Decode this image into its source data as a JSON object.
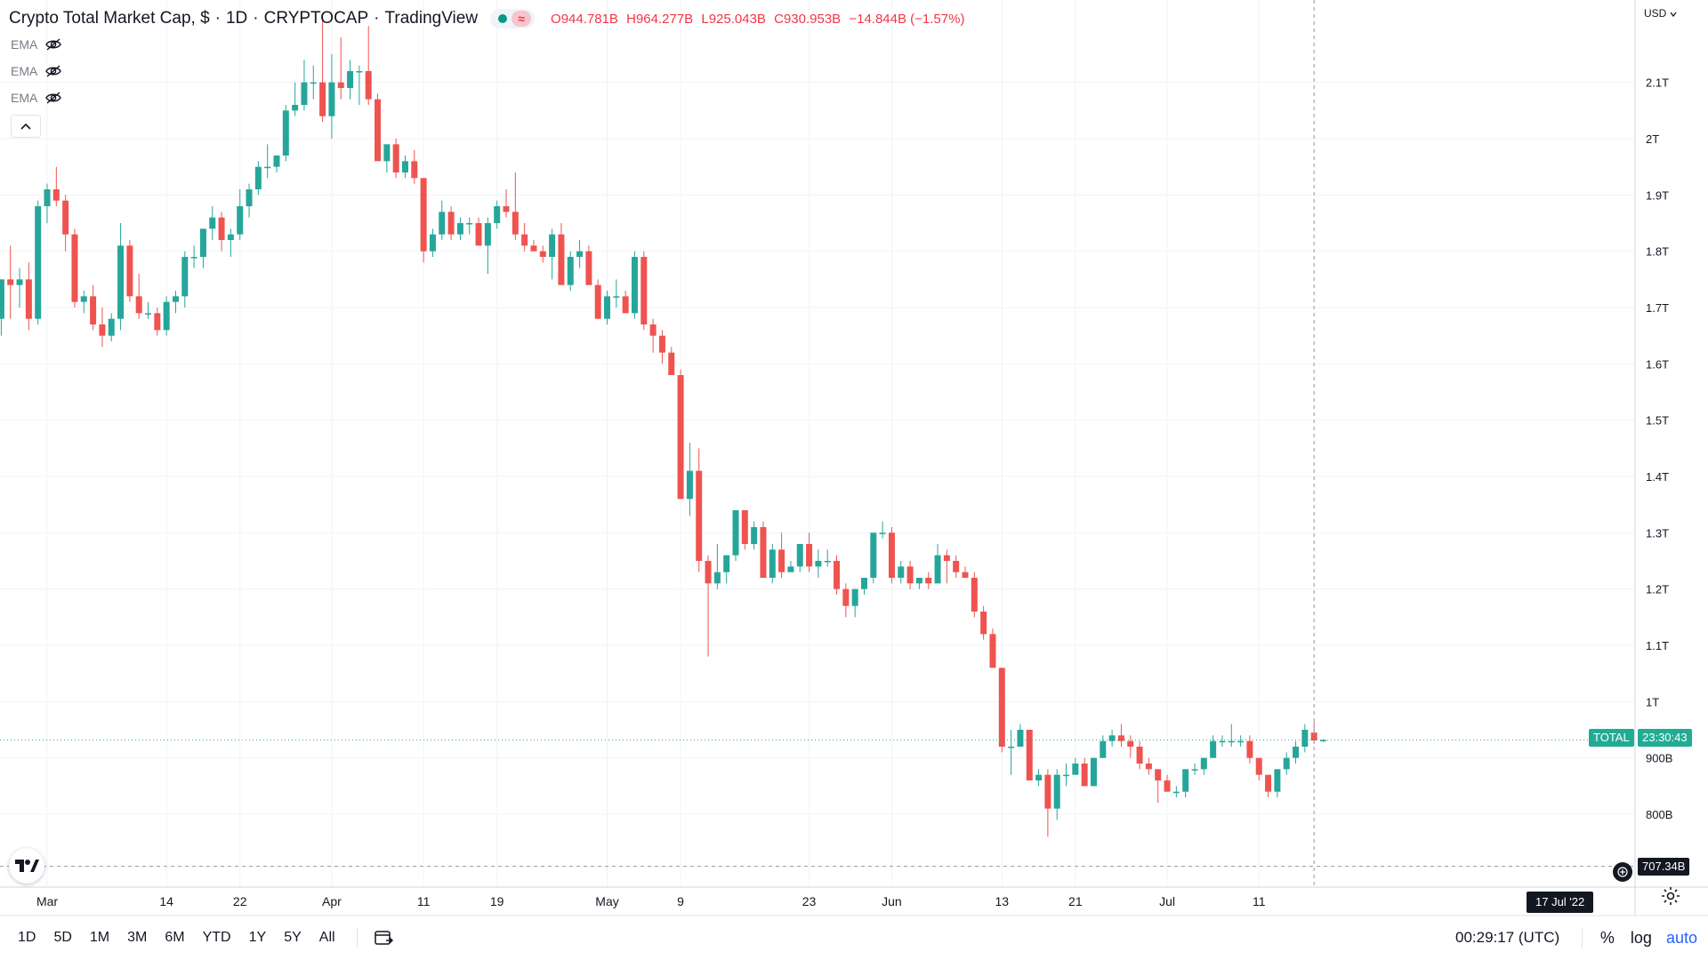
{
  "header": {
    "title": "Crypto Total Market Cap, $",
    "interval": "1D",
    "symbol": "CRYPTOCAP",
    "source": "TradingView",
    "ohlc": {
      "open": "O944.781B",
      "high": "H964.277B",
      "low": "L925.043B",
      "close": "C930.953B",
      "change": "−14.844B (−1.57%)"
    }
  },
  "indicators": [
    {
      "label": "EMA",
      "icon": "eye-crossed-icon"
    },
    {
      "label": "EMA",
      "icon": "eye-crossed-icon"
    },
    {
      "label": "EMA",
      "icon": "eye-crossed-icon"
    }
  ],
  "price_axis": {
    "currency": "USD",
    "labels": [
      "2.1T",
      "2T",
      "1.9T",
      "1.8T",
      "1.7T",
      "1.6T",
      "1.5T",
      "1.4T",
      "1.3T",
      "1.2T",
      "1.1T",
      "1T",
      "900B",
      "800B"
    ]
  },
  "tags": {
    "symbol_label": "TOTAL",
    "countdown": "23:30:43",
    "crosshair_price": "707.34B",
    "crosshair_date": "17 Jul '22"
  },
  "x_axis_labels": [
    "Mar",
    "14",
    "22",
    "Apr",
    "11",
    "19",
    "May",
    "9",
    "23",
    "Jun",
    "13",
    "21",
    "Jul",
    "11"
  ],
  "bottom_bar": {
    "ranges": [
      "1D",
      "5D",
      "1M",
      "3M",
      "6M",
      "YTD",
      "1Y",
      "5Y",
      "All"
    ],
    "clock": "00:29:17 (UTC)",
    "percent": "%",
    "log": "log",
    "auto": "auto"
  },
  "colors": {
    "up": "#26a69a",
    "down": "#ef5350",
    "tag_green": "#22ab94",
    "ohlc_text": "#f23645",
    "grid": "#f0f3fa"
  },
  "chart_data": {
    "type": "candlestick",
    "title": "Crypto Total Market Cap, $",
    "xlabel": "",
    "ylabel": "",
    "ylim": [
      0.708,
      2.27
    ],
    "x_range": [
      "2022-02-24",
      "2022-07-17"
    ],
    "units": "trillion USD",
    "grid": true,
    "candles": [
      {
        "date": "2022-02-24",
        "o": 1.68,
        "h": 1.75,
        "l": 1.65,
        "c": 1.75
      },
      {
        "date": "2022-02-25",
        "o": 1.75,
        "h": 1.81,
        "l": 1.68,
        "c": 1.74
      },
      {
        "date": "2022-02-26",
        "o": 1.74,
        "h": 1.77,
        "l": 1.7,
        "c": 1.75
      },
      {
        "date": "2022-02-27",
        "o": 1.75,
        "h": 1.78,
        "l": 1.66,
        "c": 1.68
      },
      {
        "date": "2022-02-28",
        "o": 1.68,
        "h": 1.89,
        "l": 1.67,
        "c": 1.88
      },
      {
        "date": "2022-03-01",
        "o": 1.88,
        "h": 1.92,
        "l": 1.85,
        "c": 1.91
      },
      {
        "date": "2022-03-02",
        "o": 1.91,
        "h": 1.95,
        "l": 1.88,
        "c": 1.89
      },
      {
        "date": "2022-03-03",
        "o": 1.89,
        "h": 1.9,
        "l": 1.8,
        "c": 1.83
      },
      {
        "date": "2022-03-04",
        "o": 1.83,
        "h": 1.84,
        "l": 1.7,
        "c": 1.71
      },
      {
        "date": "2022-03-05",
        "o": 1.71,
        "h": 1.73,
        "l": 1.69,
        "c": 1.72
      },
      {
        "date": "2022-03-06",
        "o": 1.72,
        "h": 1.74,
        "l": 1.66,
        "c": 1.67
      },
      {
        "date": "2022-03-07",
        "o": 1.67,
        "h": 1.7,
        "l": 1.63,
        "c": 1.65
      },
      {
        "date": "2022-03-08",
        "o": 1.65,
        "h": 1.69,
        "l": 1.64,
        "c": 1.68
      },
      {
        "date": "2022-03-09",
        "o": 1.68,
        "h": 1.85,
        "l": 1.66,
        "c": 1.81
      },
      {
        "date": "2022-03-10",
        "o": 1.81,
        "h": 1.82,
        "l": 1.71,
        "c": 1.72
      },
      {
        "date": "2022-03-11",
        "o": 1.72,
        "h": 1.76,
        "l": 1.68,
        "c": 1.69
      },
      {
        "date": "2022-03-12",
        "o": 1.69,
        "h": 1.71,
        "l": 1.68,
        "c": 1.69
      },
      {
        "date": "2022-03-13",
        "o": 1.69,
        "h": 1.7,
        "l": 1.65,
        "c": 1.66
      },
      {
        "date": "2022-03-14",
        "o": 1.66,
        "h": 1.72,
        "l": 1.65,
        "c": 1.71
      },
      {
        "date": "2022-03-15",
        "o": 1.71,
        "h": 1.73,
        "l": 1.69,
        "c": 1.72
      },
      {
        "date": "2022-03-16",
        "o": 1.72,
        "h": 1.8,
        "l": 1.7,
        "c": 1.79
      },
      {
        "date": "2022-03-17",
        "o": 1.79,
        "h": 1.81,
        "l": 1.77,
        "c": 1.79
      },
      {
        "date": "2022-03-18",
        "o": 1.79,
        "h": 1.84,
        "l": 1.77,
        "c": 1.84
      },
      {
        "date": "2022-03-19",
        "o": 1.84,
        "h": 1.88,
        "l": 1.82,
        "c": 1.86
      },
      {
        "date": "2022-03-20",
        "o": 1.86,
        "h": 1.87,
        "l": 1.8,
        "c": 1.82
      },
      {
        "date": "2022-03-21",
        "o": 1.82,
        "h": 1.84,
        "l": 1.79,
        "c": 1.83
      },
      {
        "date": "2022-03-22",
        "o": 1.83,
        "h": 1.91,
        "l": 1.82,
        "c": 1.88
      },
      {
        "date": "2022-03-23",
        "o": 1.88,
        "h": 1.92,
        "l": 1.86,
        "c": 1.91
      },
      {
        "date": "2022-03-24",
        "o": 1.91,
        "h": 1.96,
        "l": 1.9,
        "c": 1.95
      },
      {
        "date": "2022-03-25",
        "o": 1.95,
        "h": 1.99,
        "l": 1.93,
        "c": 1.95
      },
      {
        "date": "2022-03-26",
        "o": 1.95,
        "h": 1.97,
        "l": 1.94,
        "c": 1.97
      },
      {
        "date": "2022-03-27",
        "o": 1.97,
        "h": 2.06,
        "l": 1.96,
        "c": 2.05
      },
      {
        "date": "2022-03-28",
        "o": 2.05,
        "h": 2.1,
        "l": 2.04,
        "c": 2.06
      },
      {
        "date": "2022-03-29",
        "o": 2.06,
        "h": 2.14,
        "l": 2.05,
        "c": 2.1
      },
      {
        "date": "2022-03-30",
        "o": 2.1,
        "h": 2.13,
        "l": 2.07,
        "c": 2.1
      },
      {
        "date": "2022-03-31",
        "o": 2.1,
        "h": 2.22,
        "l": 2.03,
        "c": 2.04
      },
      {
        "date": "2022-04-01",
        "o": 2.04,
        "h": 2.15,
        "l": 2.0,
        "c": 2.1
      },
      {
        "date": "2022-04-02",
        "o": 2.1,
        "h": 2.18,
        "l": 2.07,
        "c": 2.09
      },
      {
        "date": "2022-04-03",
        "o": 2.09,
        "h": 2.14,
        "l": 2.07,
        "c": 2.12
      },
      {
        "date": "2022-04-04",
        "o": 2.12,
        "h": 2.13,
        "l": 2.06,
        "c": 2.12
      },
      {
        "date": "2022-04-05",
        "o": 2.12,
        "h": 2.2,
        "l": 2.06,
        "c": 2.07
      },
      {
        "date": "2022-04-06",
        "o": 2.07,
        "h": 2.08,
        "l": 1.96,
        "c": 1.96
      },
      {
        "date": "2022-04-07",
        "o": 1.96,
        "h": 1.99,
        "l": 1.94,
        "c": 1.99
      },
      {
        "date": "2022-04-08",
        "o": 1.99,
        "h": 2.0,
        "l": 1.93,
        "c": 1.94
      },
      {
        "date": "2022-04-09",
        "o": 1.94,
        "h": 1.97,
        "l": 1.93,
        "c": 1.96
      },
      {
        "date": "2022-04-10",
        "o": 1.96,
        "h": 1.98,
        "l": 1.92,
        "c": 1.93
      },
      {
        "date": "2022-04-11",
        "o": 1.93,
        "h": 1.93,
        "l": 1.78,
        "c": 1.8
      },
      {
        "date": "2022-04-12",
        "o": 1.8,
        "h": 1.84,
        "l": 1.79,
        "c": 1.83
      },
      {
        "date": "2022-04-13",
        "o": 1.83,
        "h": 1.89,
        "l": 1.82,
        "c": 1.87
      },
      {
        "date": "2022-04-14",
        "o": 1.87,
        "h": 1.88,
        "l": 1.82,
        "c": 1.83
      },
      {
        "date": "2022-04-15",
        "o": 1.83,
        "h": 1.86,
        "l": 1.82,
        "c": 1.85
      },
      {
        "date": "2022-04-16",
        "o": 1.85,
        "h": 1.86,
        "l": 1.83,
        "c": 1.85
      },
      {
        "date": "2022-04-17",
        "o": 1.85,
        "h": 1.86,
        "l": 1.81,
        "c": 1.81
      },
      {
        "date": "2022-04-18",
        "o": 1.81,
        "h": 1.86,
        "l": 1.76,
        "c": 1.85
      },
      {
        "date": "2022-04-19",
        "o": 1.85,
        "h": 1.89,
        "l": 1.84,
        "c": 1.88
      },
      {
        "date": "2022-04-20",
        "o": 1.88,
        "h": 1.91,
        "l": 1.86,
        "c": 1.87
      },
      {
        "date": "2022-04-21",
        "o": 1.87,
        "h": 1.94,
        "l": 1.82,
        "c": 1.83
      },
      {
        "date": "2022-04-22",
        "o": 1.83,
        "h": 1.85,
        "l": 1.8,
        "c": 1.81
      },
      {
        "date": "2022-04-23",
        "o": 1.81,
        "h": 1.82,
        "l": 1.8,
        "c": 1.8
      },
      {
        "date": "2022-04-24",
        "o": 1.8,
        "h": 1.81,
        "l": 1.78,
        "c": 1.79
      },
      {
        "date": "2022-04-25",
        "o": 1.79,
        "h": 1.84,
        "l": 1.75,
        "c": 1.83
      },
      {
        "date": "2022-04-26",
        "o": 1.83,
        "h": 1.85,
        "l": 1.74,
        "c": 1.74
      },
      {
        "date": "2022-04-27",
        "o": 1.74,
        "h": 1.8,
        "l": 1.73,
        "c": 1.79
      },
      {
        "date": "2022-04-28",
        "o": 1.79,
        "h": 1.82,
        "l": 1.77,
        "c": 1.8
      },
      {
        "date": "2022-04-29",
        "o": 1.8,
        "h": 1.81,
        "l": 1.74,
        "c": 1.74
      },
      {
        "date": "2022-04-30",
        "o": 1.74,
        "h": 1.75,
        "l": 1.68,
        "c": 1.68
      },
      {
        "date": "2022-05-01",
        "o": 1.68,
        "h": 1.73,
        "l": 1.67,
        "c": 1.72
      },
      {
        "date": "2022-05-02",
        "o": 1.72,
        "h": 1.75,
        "l": 1.7,
        "c": 1.72
      },
      {
        "date": "2022-05-03",
        "o": 1.72,
        "h": 1.73,
        "l": 1.69,
        "c": 1.69
      },
      {
        "date": "2022-05-04",
        "o": 1.69,
        "h": 1.8,
        "l": 1.68,
        "c": 1.79
      },
      {
        "date": "2022-05-05",
        "o": 1.79,
        "h": 1.8,
        "l": 1.66,
        "c": 1.67
      },
      {
        "date": "2022-05-06",
        "o": 1.67,
        "h": 1.68,
        "l": 1.62,
        "c": 1.65
      },
      {
        "date": "2022-05-07",
        "o": 1.65,
        "h": 1.66,
        "l": 1.6,
        "c": 1.62
      },
      {
        "date": "2022-05-08",
        "o": 1.62,
        "h": 1.63,
        "l": 1.58,
        "c": 1.58
      },
      {
        "date": "2022-05-09",
        "o": 1.58,
        "h": 1.59,
        "l": 1.36,
        "c": 1.36
      },
      {
        "date": "2022-05-10",
        "o": 1.36,
        "h": 1.46,
        "l": 1.33,
        "c": 1.41
      },
      {
        "date": "2022-05-11",
        "o": 1.41,
        "h": 1.45,
        "l": 1.23,
        "c": 1.25
      },
      {
        "date": "2022-05-12",
        "o": 1.25,
        "h": 1.26,
        "l": 1.08,
        "c": 1.21
      },
      {
        "date": "2022-05-13",
        "o": 1.21,
        "h": 1.28,
        "l": 1.2,
        "c": 1.23
      },
      {
        "date": "2022-05-14",
        "o": 1.23,
        "h": 1.26,
        "l": 1.21,
        "c": 1.26
      },
      {
        "date": "2022-05-15",
        "o": 1.26,
        "h": 1.34,
        "l": 1.25,
        "c": 1.34
      },
      {
        "date": "2022-05-16",
        "o": 1.34,
        "h": 1.34,
        "l": 1.27,
        "c": 1.28
      },
      {
        "date": "2022-05-17",
        "o": 1.28,
        "h": 1.32,
        "l": 1.27,
        "c": 1.31
      },
      {
        "date": "2022-05-18",
        "o": 1.31,
        "h": 1.32,
        "l": 1.22,
        "c": 1.22
      },
      {
        "date": "2022-05-19",
        "o": 1.22,
        "h": 1.28,
        "l": 1.21,
        "c": 1.27
      },
      {
        "date": "2022-05-20",
        "o": 1.27,
        "h": 1.3,
        "l": 1.22,
        "c": 1.23
      },
      {
        "date": "2022-05-21",
        "o": 1.23,
        "h": 1.25,
        "l": 1.23,
        "c": 1.24
      },
      {
        "date": "2022-05-22",
        "o": 1.24,
        "h": 1.28,
        "l": 1.23,
        "c": 1.28
      },
      {
        "date": "2022-05-23",
        "o": 1.28,
        "h": 1.3,
        "l": 1.23,
        "c": 1.24
      },
      {
        "date": "2022-05-24",
        "o": 1.24,
        "h": 1.27,
        "l": 1.22,
        "c": 1.25
      },
      {
        "date": "2022-05-25",
        "o": 1.25,
        "h": 1.27,
        "l": 1.24,
        "c": 1.25
      },
      {
        "date": "2022-05-26",
        "o": 1.25,
        "h": 1.26,
        "l": 1.19,
        "c": 1.2
      },
      {
        "date": "2022-05-27",
        "o": 1.2,
        "h": 1.21,
        "l": 1.15,
        "c": 1.17
      },
      {
        "date": "2022-05-28",
        "o": 1.17,
        "h": 1.2,
        "l": 1.15,
        "c": 1.2
      },
      {
        "date": "2022-05-29",
        "o": 1.2,
        "h": 1.22,
        "l": 1.19,
        "c": 1.22
      },
      {
        "date": "2022-05-30",
        "o": 1.22,
        "h": 1.3,
        "l": 1.21,
        "c": 1.3
      },
      {
        "date": "2022-05-31",
        "o": 1.3,
        "h": 1.32,
        "l": 1.29,
        "c": 1.3
      },
      {
        "date": "2022-06-01",
        "o": 1.3,
        "h": 1.31,
        "l": 1.21,
        "c": 1.22
      },
      {
        "date": "2022-06-02",
        "o": 1.22,
        "h": 1.25,
        "l": 1.21,
        "c": 1.24
      },
      {
        "date": "2022-06-03",
        "o": 1.24,
        "h": 1.25,
        "l": 1.2,
        "c": 1.21
      },
      {
        "date": "2022-06-04",
        "o": 1.21,
        "h": 1.22,
        "l": 1.2,
        "c": 1.22
      },
      {
        "date": "2022-06-05",
        "o": 1.22,
        "h": 1.23,
        "l": 1.2,
        "c": 1.21
      },
      {
        "date": "2022-06-06",
        "o": 1.21,
        "h": 1.28,
        "l": 1.21,
        "c": 1.26
      },
      {
        "date": "2022-06-07",
        "o": 1.26,
        "h": 1.27,
        "l": 1.21,
        "c": 1.25
      },
      {
        "date": "2022-06-08",
        "o": 1.25,
        "h": 1.26,
        "l": 1.22,
        "c": 1.23
      },
      {
        "date": "2022-06-09",
        "o": 1.23,
        "h": 1.24,
        "l": 1.22,
        "c": 1.22
      },
      {
        "date": "2022-06-10",
        "o": 1.22,
        "h": 1.23,
        "l": 1.15,
        "c": 1.16
      },
      {
        "date": "2022-06-11",
        "o": 1.16,
        "h": 1.17,
        "l": 1.11,
        "c": 1.12
      },
      {
        "date": "2022-06-12",
        "o": 1.12,
        "h": 1.13,
        "l": 1.06,
        "c": 1.06
      },
      {
        "date": "2022-06-13",
        "o": 1.06,
        "h": 1.06,
        "l": 0.91,
        "c": 0.92
      },
      {
        "date": "2022-06-14",
        "o": 0.92,
        "h": 0.95,
        "l": 0.87,
        "c": 0.92
      },
      {
        "date": "2022-06-15",
        "o": 0.92,
        "h": 0.96,
        "l": 0.92,
        "c": 0.95
      },
      {
        "date": "2022-06-16",
        "o": 0.95,
        "h": 0.95,
        "l": 0.86,
        "c": 0.86
      },
      {
        "date": "2022-06-17",
        "o": 0.86,
        "h": 0.88,
        "l": 0.85,
        "c": 0.87
      },
      {
        "date": "2022-06-18",
        "o": 0.87,
        "h": 0.88,
        "l": 0.76,
        "c": 0.81
      },
      {
        "date": "2022-06-19",
        "o": 0.81,
        "h": 0.88,
        "l": 0.79,
        "c": 0.87
      },
      {
        "date": "2022-06-20",
        "o": 0.87,
        "h": 0.89,
        "l": 0.85,
        "c": 0.87
      },
      {
        "date": "2022-06-21",
        "o": 0.87,
        "h": 0.9,
        "l": 0.87,
        "c": 0.89
      },
      {
        "date": "2022-06-22",
        "o": 0.89,
        "h": 0.9,
        "l": 0.85,
        "c": 0.85
      },
      {
        "date": "2022-06-23",
        "o": 0.85,
        "h": 0.9,
        "l": 0.85,
        "c": 0.9
      },
      {
        "date": "2022-06-24",
        "o": 0.9,
        "h": 0.94,
        "l": 0.9,
        "c": 0.93
      },
      {
        "date": "2022-06-25",
        "o": 0.93,
        "h": 0.95,
        "l": 0.92,
        "c": 0.94
      },
      {
        "date": "2022-06-26",
        "o": 0.94,
        "h": 0.96,
        "l": 0.92,
        "c": 0.93
      },
      {
        "date": "2022-06-27",
        "o": 0.93,
        "h": 0.94,
        "l": 0.9,
        "c": 0.92
      },
      {
        "date": "2022-06-28",
        "o": 0.92,
        "h": 0.93,
        "l": 0.88,
        "c": 0.89
      },
      {
        "date": "2022-06-29",
        "o": 0.89,
        "h": 0.9,
        "l": 0.87,
        "c": 0.88
      },
      {
        "date": "2022-06-30",
        "o": 0.88,
        "h": 0.88,
        "l": 0.82,
        "c": 0.86
      },
      {
        "date": "2022-07-01",
        "o": 0.86,
        "h": 0.87,
        "l": 0.84,
        "c": 0.84
      },
      {
        "date": "2022-07-02",
        "o": 0.84,
        "h": 0.85,
        "l": 0.83,
        "c": 0.84
      },
      {
        "date": "2022-07-03",
        "o": 0.84,
        "h": 0.88,
        "l": 0.83,
        "c": 0.88
      },
      {
        "date": "2022-07-04",
        "o": 0.88,
        "h": 0.89,
        "l": 0.87,
        "c": 0.88
      },
      {
        "date": "2022-07-05",
        "o": 0.88,
        "h": 0.9,
        "l": 0.87,
        "c": 0.9
      },
      {
        "date": "2022-07-06",
        "o": 0.9,
        "h": 0.94,
        "l": 0.9,
        "c": 0.93
      },
      {
        "date": "2022-07-07",
        "o": 0.93,
        "h": 0.94,
        "l": 0.92,
        "c": 0.93
      },
      {
        "date": "2022-07-08",
        "o": 0.93,
        "h": 0.96,
        "l": 0.92,
        "c": 0.93
      },
      {
        "date": "2022-07-09",
        "o": 0.93,
        "h": 0.94,
        "l": 0.92,
        "c": 0.93
      },
      {
        "date": "2022-07-10",
        "o": 0.93,
        "h": 0.94,
        "l": 0.89,
        "c": 0.9
      },
      {
        "date": "2022-07-11",
        "o": 0.9,
        "h": 0.9,
        "l": 0.86,
        "c": 0.87
      },
      {
        "date": "2022-07-12",
        "o": 0.87,
        "h": 0.87,
        "l": 0.83,
        "c": 0.84
      },
      {
        "date": "2022-07-13",
        "o": 0.84,
        "h": 0.88,
        "l": 0.83,
        "c": 0.88
      },
      {
        "date": "2022-07-14",
        "o": 0.88,
        "h": 0.91,
        "l": 0.87,
        "c": 0.9
      },
      {
        "date": "2022-07-15",
        "o": 0.9,
        "h": 0.93,
        "l": 0.89,
        "c": 0.92
      },
      {
        "date": "2022-07-16",
        "o": 0.92,
        "h": 0.96,
        "l": 0.91,
        "c": 0.95
      },
      {
        "date": "2022-07-17",
        "o": 0.945,
        "h": 0.964,
        "l": 0.925,
        "c": 0.931
      },
      {
        "date": "2022-07-18",
        "o": 0.931,
        "h": 0.933,
        "l": 0.928,
        "c": 0.932
      }
    ]
  }
}
